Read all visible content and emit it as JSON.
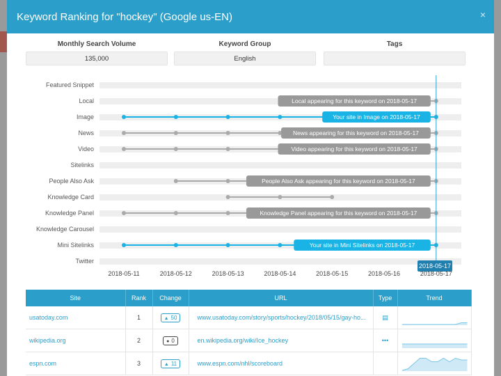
{
  "modal": {
    "title": "Keyword Ranking for \"hockey\" (Google us-EN)",
    "close_icon": "×"
  },
  "meta": {
    "volume_label": "Monthly Search Volume",
    "volume_value": "135,000",
    "group_label": "Keyword Group",
    "group_value": "English",
    "tags_label": "Tags",
    "tags_value": ""
  },
  "timeline": {
    "dates": [
      "2018-05-11",
      "2018-05-12",
      "2018-05-13",
      "2018-05-14",
      "2018-05-15",
      "2018-05-16",
      "2018-05-17"
    ],
    "current_date": "2018-05-17",
    "features": [
      {
        "name": "Featured Snippet",
        "days": [],
        "label": "",
        "owned": false
      },
      {
        "name": "Local",
        "days": [
          4,
          7
        ],
        "label": "Local appearing for this keyword on 2018-05-17",
        "owned": false
      },
      {
        "name": "Image",
        "days": [
          1,
          2,
          3,
          4,
          5,
          7
        ],
        "label": "Your site in Image on 2018-05-17",
        "owned": true
      },
      {
        "name": "News",
        "days": [
          1,
          2,
          3,
          4,
          5,
          7
        ],
        "label": "News appearing for this keyword on 2018-05-17",
        "owned": false
      },
      {
        "name": "Video",
        "days": [
          1,
          2,
          3,
          4,
          5,
          7
        ],
        "label": "Video appearing for this keyword on 2018-05-17",
        "owned": false
      },
      {
        "name": "Sitelinks",
        "days": [],
        "label": "",
        "owned": false
      },
      {
        "name": "People Also Ask",
        "days": [
          2,
          3,
          4,
          5,
          7
        ],
        "label": "People Also Ask appearing for this keyword on 2018-05-17",
        "owned": false
      },
      {
        "name": "Knowledge Card",
        "days": [
          3,
          4,
          5
        ],
        "label": "",
        "owned": false
      },
      {
        "name": "Knowledge Panel",
        "days": [
          1,
          2,
          3,
          4,
          5,
          7
        ],
        "label": "Knowledge Panel appearing for this keyword on 2018-05-17",
        "owned": false
      },
      {
        "name": "Knowledge Carousel",
        "days": [],
        "label": "",
        "owned": false
      },
      {
        "name": "Mini Sitelinks",
        "days": [
          1,
          2,
          3,
          4,
          5,
          7
        ],
        "label": "Your site in Mini Sitelinks on 2018-05-17",
        "owned": true
      },
      {
        "name": "Twitter",
        "days": [],
        "label": "",
        "owned": false
      }
    ]
  },
  "colors": {
    "accent": "#2b9ec9",
    "owned": "#1ab3e6",
    "other": "#aaaaaa",
    "track": "#eeeeee"
  },
  "table": {
    "headers": [
      "Site",
      "Rank",
      "Change",
      "URL",
      "Type",
      "Trend"
    ],
    "rows": [
      {
        "site": "usatoday.com",
        "rank": "1",
        "change": "50",
        "change_dir": "up",
        "url": "www.usatoday.com/story/sports/hockey/2018/05/15/gay-ho...",
        "type_icon": "news-icon",
        "trend": [
          0,
          0,
          0,
          0,
          0,
          0,
          0,
          0,
          0,
          0,
          1,
          1
        ]
      },
      {
        "site": "wikipedia.org",
        "rank": "2",
        "change": "0",
        "change_dir": "none",
        "url": "en.wikipedia.org/wiki/Ice_hockey",
        "type_icon": "dots-icon",
        "trend": [
          2,
          2,
          2,
          2,
          2,
          2,
          2,
          2,
          2,
          2,
          2,
          2
        ]
      },
      {
        "site": "espn.com",
        "rank": "3",
        "change": "11",
        "change_dir": "up",
        "url": "www.espn.com/nhl/scoreboard",
        "type_icon": "",
        "trend": [
          0,
          1,
          4,
          7,
          7,
          5,
          5,
          7,
          5,
          7,
          6,
          6
        ]
      }
    ]
  }
}
